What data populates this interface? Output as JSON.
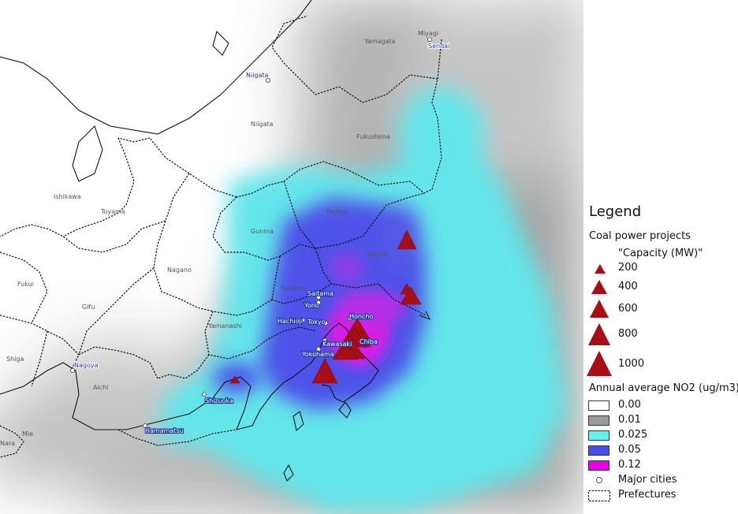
{
  "legend": {
    "title": "Legend",
    "coal_heading": "Coal power projects",
    "capacity_heading": "\"Capacity (MW)\"",
    "capacity_items": [
      {
        "label": "200",
        "value": 200
      },
      {
        "label": "400",
        "value": 400
      },
      {
        "label": "600",
        "value": 600
      },
      {
        "label": "800",
        "value": 800
      },
      {
        "label": "1000",
        "value": 1000
      }
    ],
    "no2_heading": "Annual average NO2 (ug/m3)",
    "no2_items": [
      {
        "label": "0.00",
        "color": "#ffffff"
      },
      {
        "label": "0.01",
        "color": "#9a9a9a"
      },
      {
        "label": "0.025",
        "color": "#5ff0f0"
      },
      {
        "label": "0.05",
        "color": "#4b4ee6"
      },
      {
        "label": "0.12",
        "color": "#e600e6"
      }
    ],
    "cities_label": "Major cities",
    "prefectures_label": "Prefectures"
  },
  "colors": {
    "coal_marker": "#a50f15",
    "city_label_text": "#1e2fae",
    "prefecture_border": "#111111"
  },
  "map": {
    "prefectures": [
      "Yamagata",
      "Miyagi",
      "Niigata",
      "Fukushima",
      "Tochigi",
      "Ishikawa",
      "Toyama",
      "Gunma",
      "Ibaraki",
      "Nagano",
      "Saitama",
      "Fukui",
      "Gifu",
      "Yamanashi",
      "Shiga",
      "Aichi",
      "Mie",
      "Nara"
    ],
    "cities": [
      "Sendai",
      "Niigata",
      "Saitama",
      "Yono",
      "Hachioji",
      "Tokyo",
      "Honcho",
      "Chiba",
      "Kawasaki",
      "Yokohama",
      "Nagoya",
      "Shizuoka",
      "Hamamatsu"
    ]
  }
}
